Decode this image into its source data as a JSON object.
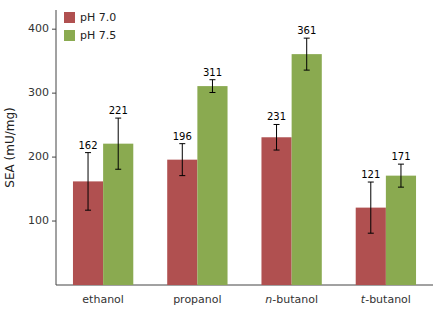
{
  "chart_data": {
    "type": "bar",
    "categories": [
      "ethanol",
      "propanol",
      "n-butanol",
      "t-butanol"
    ],
    "series": [
      {
        "name": "pH 7.0",
        "color": "#b05050",
        "values": [
          162,
          196,
          231,
          121
        ],
        "errors": [
          45,
          25,
          20,
          40
        ]
      },
      {
        "name": "pH 7.5",
        "color": "#8aaa50",
        "values": [
          221,
          311,
          361,
          171
        ],
        "errors": [
          40,
          10,
          25,
          18
        ]
      }
    ],
    "ylabel": "SEA (mU/mg)",
    "ylim": [
      0,
      430
    ],
    "yticks": [
      100,
      200,
      300,
      400
    ],
    "legend": "upper left",
    "data_labels": true,
    "grid": false
  }
}
